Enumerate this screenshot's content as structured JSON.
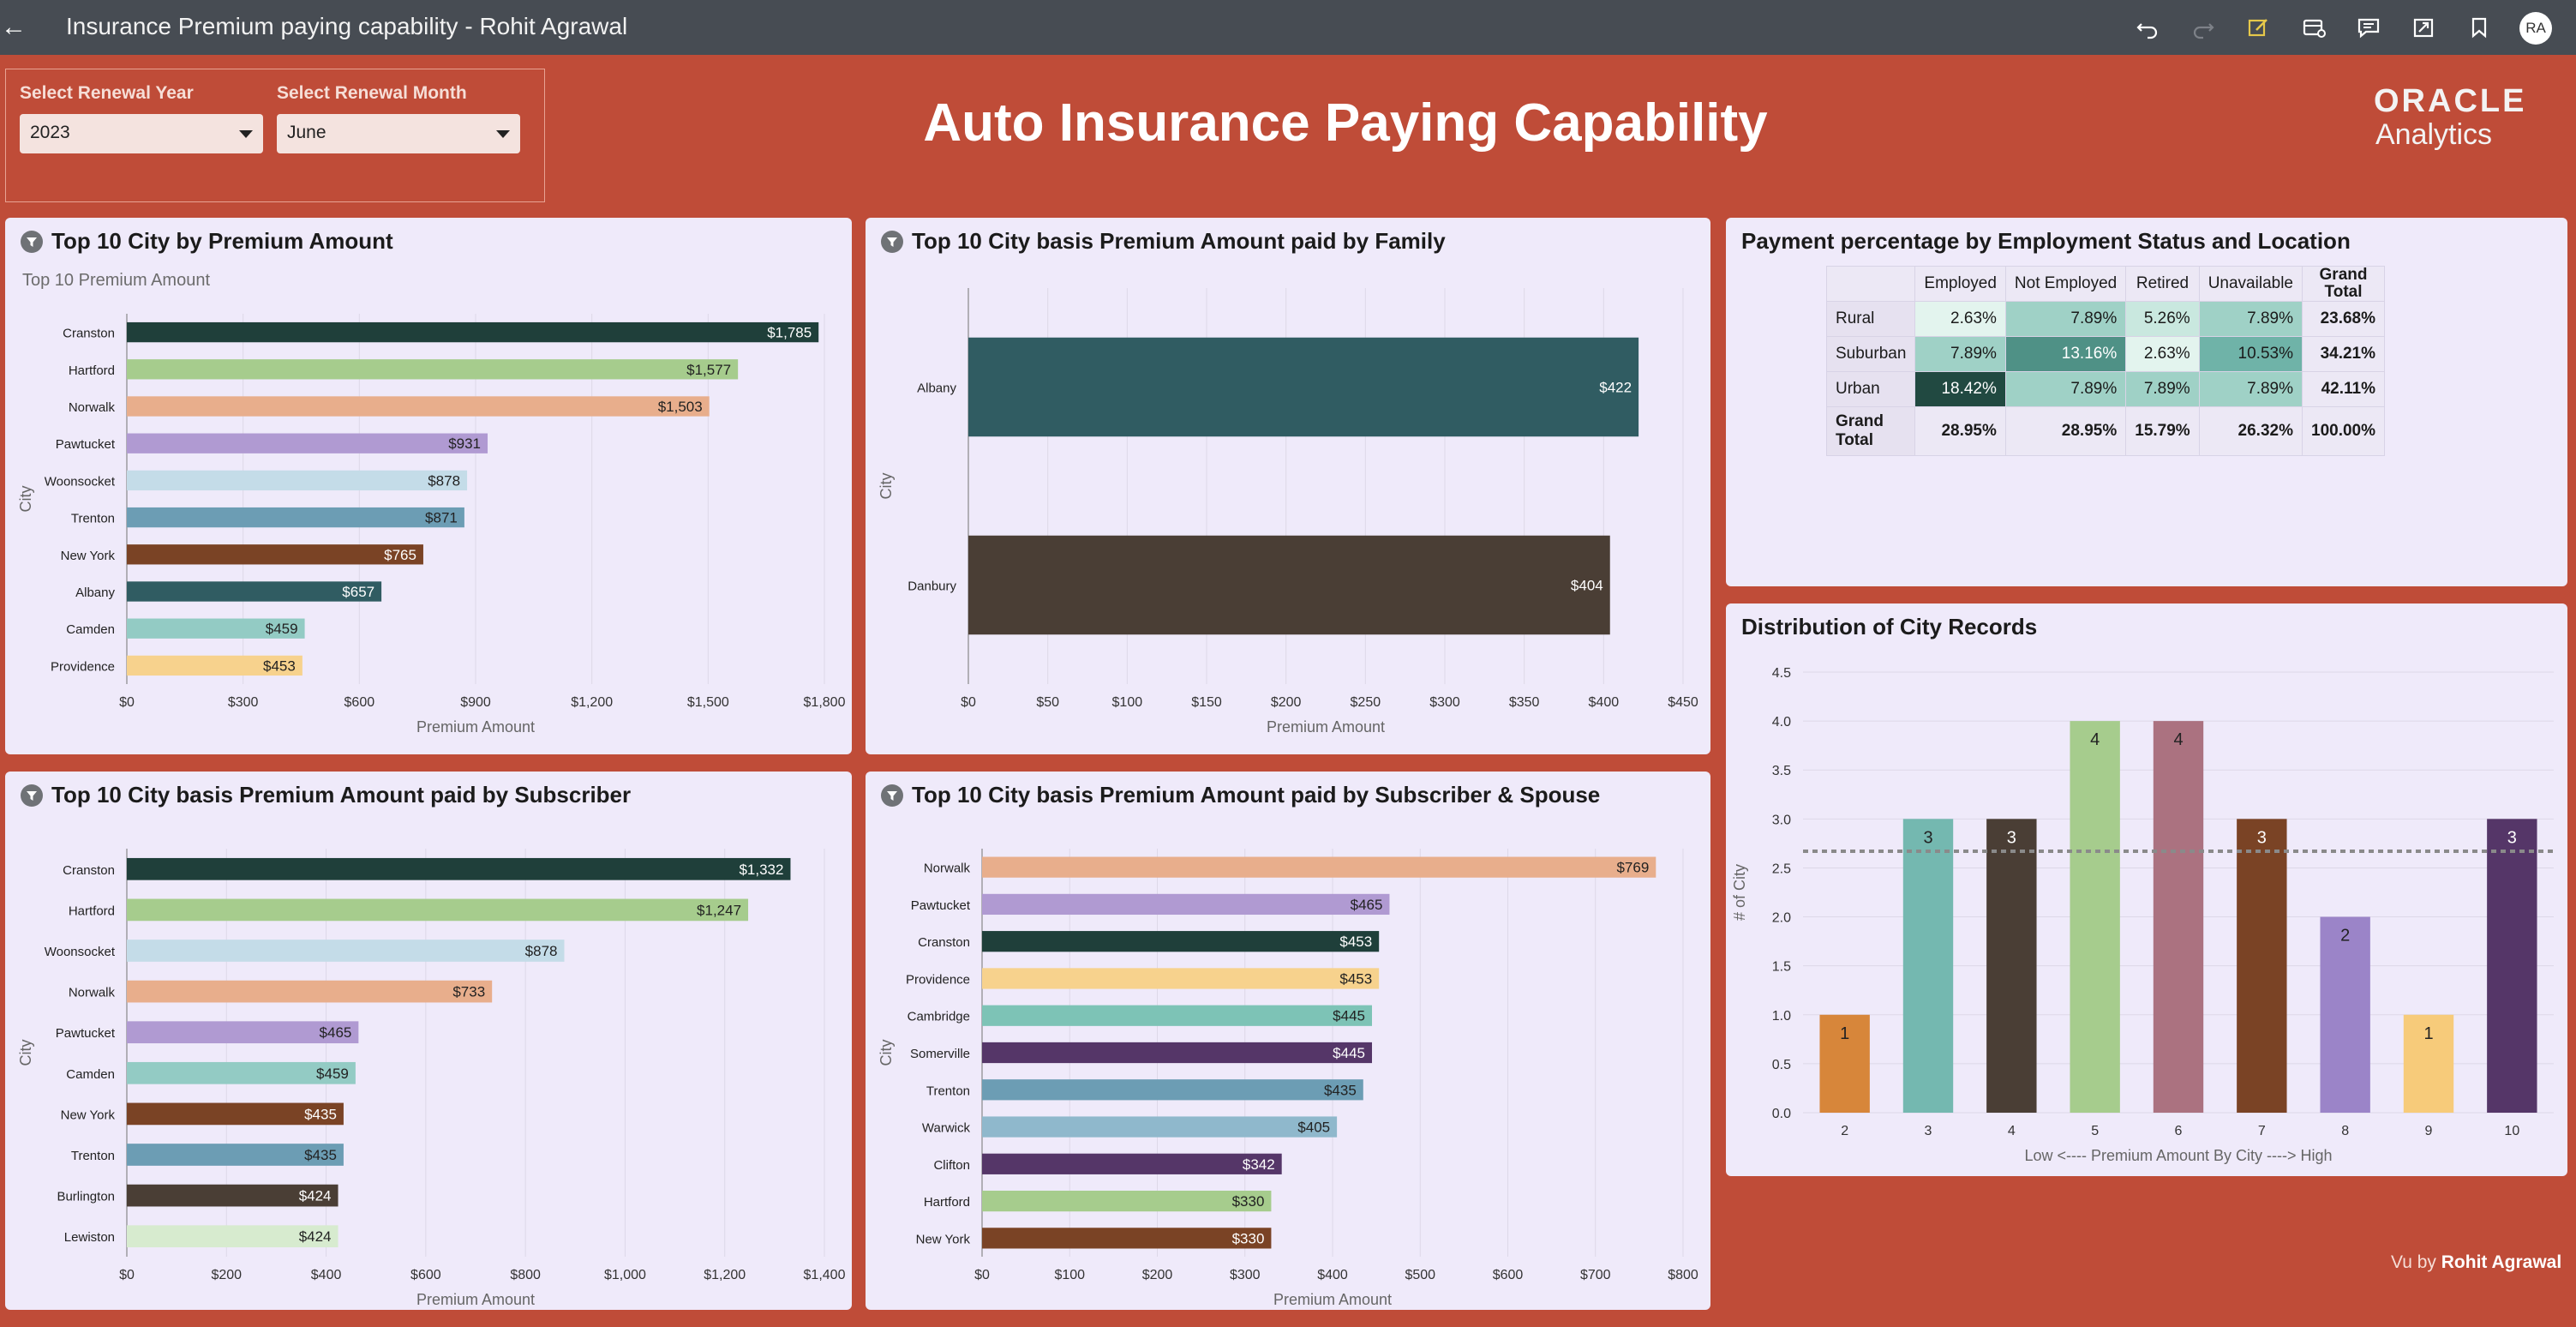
{
  "app": {
    "title": "Insurance Premium paying capability - Rohit Agrawal",
    "user_initials": "RA",
    "toolbar_icons": [
      "undo-icon",
      "redo-icon",
      "edit-icon",
      "data-icon",
      "comments-icon",
      "export-icon",
      "bookmark-icon"
    ]
  },
  "filters": {
    "year_label": "Select Renewal Year",
    "year_value": "2023",
    "month_label": "Select Renewal Month",
    "month_value": "June"
  },
  "dashboard_title": "Auto Insurance Paying Capability",
  "logo": {
    "line1": "ORACLE",
    "line2": "Analytics"
  },
  "credit": {
    "prefix": "Vu by",
    "name": "Rohit Agrawal"
  },
  "colors": {
    "background": "#bf4c38",
    "panel": "#efeafa",
    "dark_green": "#1f3f3a",
    "light_green": "#a6cc8d",
    "peach": "#e8ae8c",
    "lavender": "#b09ad2",
    "light_blue": "#c4dce8",
    "steel_blue": "#6c9db4",
    "brown": "#7a4325",
    "teal_dark": "#305c62",
    "mint": "#93cbc4",
    "yellow": "#f7d28d",
    "dark_brown": "#4a3e35",
    "purple": "#553668"
  },
  "chart_data": [
    {
      "type": "bar",
      "orientation": "horizontal",
      "title": "Top 10 City by Premium Amount",
      "subtitle": "Top 10 Premium Amount",
      "xlabel": "Premium Amount",
      "ylabel": "City",
      "categories": [
        "Cranston",
        "Hartford",
        "Norwalk",
        "Pawtucket",
        "Woonsocket",
        "Trenton",
        "New York",
        "Albany",
        "Camden",
        "Providence"
      ],
      "values": [
        1785,
        1577,
        1503,
        931,
        878,
        871,
        765,
        657,
        459,
        453
      ],
      "labels": [
        "$1,785",
        "$1,577",
        "$1,503",
        "$931",
        "$878",
        "$871",
        "$765",
        "$657",
        "$459",
        "$453"
      ],
      "colors": [
        "#1f3f3a",
        "#a6cc8d",
        "#e8ae8c",
        "#b09ad2",
        "#c4dce8",
        "#6c9db4",
        "#7a4325",
        "#305c62",
        "#93cbc4",
        "#f7d28d"
      ],
      "label_colors": [
        "#ffffff",
        "#222222",
        "#222222",
        "#222222",
        "#222222",
        "#222222",
        "#ffffff",
        "#ffffff",
        "#222222",
        "#222222"
      ],
      "xlim": [
        0,
        1800
      ],
      "xticks": [
        "$0",
        "$300",
        "$600",
        "$900",
        "$1,200",
        "$1,500",
        "$1,800"
      ],
      "grid": true,
      "has_filter_badge": true
    },
    {
      "type": "bar",
      "orientation": "horizontal",
      "title": "Top 10 City basis Premium Amount paid by Family",
      "xlabel": "Premium Amount",
      "ylabel": "City",
      "categories": [
        "Albany",
        "Danbury"
      ],
      "values": [
        422,
        404
      ],
      "labels": [
        "$422",
        "$404"
      ],
      "colors": [
        "#305c62",
        "#4a3e35"
      ],
      "label_colors": [
        "#ffffff",
        "#ffffff"
      ],
      "xlim": [
        0,
        450
      ],
      "xticks": [
        "$0",
        "$50",
        "$100",
        "$150",
        "$200",
        "$250",
        "$300",
        "$350",
        "$400",
        "$450"
      ],
      "grid": true,
      "has_filter_badge": true
    },
    {
      "type": "table",
      "title": "Payment percentage by Employment Status and Location",
      "columns": [
        "",
        "Employed",
        "Not Employed",
        "Retired",
        "Unavailable",
        "Grand Total"
      ],
      "rows": [
        {
          "name": "Rural",
          "values": [
            "2.63%",
            "7.89%",
            "5.26%",
            "7.89%"
          ],
          "total": "23.68%",
          "shades": [
            "#e3f4ee",
            "#9fd1c6",
            "#c9e8df",
            "#9fd1c6"
          ]
        },
        {
          "name": "Suburban",
          "values": [
            "7.89%",
            "13.16%",
            "2.63%",
            "10.53%"
          ],
          "total": "34.21%",
          "shades": [
            "#9fd1c6",
            "#4f9186",
            "#e3f4ee",
            "#6fb3a8"
          ]
        },
        {
          "name": "Urban",
          "values": [
            "18.42%",
            "7.89%",
            "7.89%",
            "7.89%"
          ],
          "total": "42.11%",
          "shades": [
            "#214941",
            "#9fd1c6",
            "#9fd1c6",
            "#9fd1c6"
          ]
        }
      ],
      "grand_total": {
        "name": "Grand Total",
        "values": [
          "28.95%",
          "28.95%",
          "15.79%",
          "26.32%"
        ],
        "total": "100.00%"
      }
    },
    {
      "type": "bar",
      "orientation": "horizontal",
      "title": "Top 10 City basis Premium Amount paid by Subscriber",
      "xlabel": "Premium Amount",
      "ylabel": "City",
      "categories": [
        "Cranston",
        "Hartford",
        "Woonsocket",
        "Norwalk",
        "Pawtucket",
        "Camden",
        "New York",
        "Trenton",
        "Burlington",
        "Lewiston"
      ],
      "values": [
        1332,
        1247,
        878,
        733,
        465,
        459,
        435,
        435,
        424,
        424
      ],
      "labels": [
        "$1,332",
        "$1,247",
        "$878",
        "$733",
        "$465",
        "$459",
        "$435",
        "$435",
        "$424",
        "$424"
      ],
      "colors": [
        "#1f3f3a",
        "#a6cc8d",
        "#c4dce8",
        "#e8ae8c",
        "#b09ad2",
        "#93cbc4",
        "#7a4325",
        "#6c9db4",
        "#4a3e35",
        "#d7ebcf"
      ],
      "label_colors": [
        "#ffffff",
        "#222222",
        "#222222",
        "#222222",
        "#222222",
        "#222222",
        "#ffffff",
        "#222222",
        "#ffffff",
        "#222222"
      ],
      "xlim": [
        0,
        1400
      ],
      "xticks": [
        "$0",
        "$200",
        "$400",
        "$600",
        "$800",
        "$1,000",
        "$1,200",
        "$1,400"
      ],
      "grid": true,
      "has_filter_badge": true
    },
    {
      "type": "bar",
      "orientation": "horizontal",
      "title": "Top 10 City basis Premium Amount paid by Subscriber & Spouse",
      "xlabel": "Premium Amount",
      "ylabel": "City",
      "categories": [
        "Norwalk",
        "Pawtucket",
        "Cranston",
        "Providence",
        "Cambridge",
        "Somerville",
        "Trenton",
        "Warwick",
        "Clifton",
        "Hartford",
        "New York"
      ],
      "values": [
        769,
        465,
        453,
        453,
        445,
        445,
        435,
        405,
        342,
        330,
        330
      ],
      "labels": [
        "$769",
        "$465",
        "$453",
        "$453",
        "$445",
        "$445",
        "$435",
        "$405",
        "$342",
        "$330",
        "$330"
      ],
      "colors": [
        "#e8ae8c",
        "#b09ad2",
        "#1f3f3a",
        "#f7d28d",
        "#7dc3b6",
        "#553668",
        "#6c9db4",
        "#8fb8cc",
        "#553668",
        "#a6cc8d",
        "#7a4325"
      ],
      "label_colors": [
        "#222222",
        "#222222",
        "#ffffff",
        "#222222",
        "#222222",
        "#ffffff",
        "#222222",
        "#222222",
        "#ffffff",
        "#222222",
        "#ffffff"
      ],
      "xlim": [
        0,
        800
      ],
      "xticks": [
        "$0",
        "$100",
        "$200",
        "$300",
        "$400",
        "$500",
        "$600",
        "$700",
        "$800"
      ],
      "grid": true,
      "has_filter_badge": true
    },
    {
      "type": "bar",
      "orientation": "vertical",
      "title": "Distribution of City Records",
      "xlabel": "Low <---- Premium Amount By City ----> High",
      "ylabel": "# of City",
      "categories": [
        "2",
        "3",
        "4",
        "5",
        "6",
        "7",
        "8",
        "9",
        "10"
      ],
      "values": [
        1,
        3,
        3,
        4,
        4,
        3,
        2,
        1,
        3
      ],
      "labels": [
        "1",
        "3",
        "3",
        "4",
        "4",
        "3",
        "2",
        "1",
        "3"
      ],
      "colors": [
        "#d7863a",
        "#74b8b0",
        "#4a3e35",
        "#a6cc8d",
        "#ab7280",
        "#7a4325",
        "#9b84c8",
        "#f7cb7a",
        "#553668"
      ],
      "label_colors": [
        "#222222",
        "#222222",
        "#ffffff",
        "#222222",
        "#222222",
        "#ffffff",
        "#222222",
        "#222222",
        "#ffffff"
      ],
      "ylim": [
        0,
        4.5
      ],
      "yticks": [
        "0.0",
        "0.5",
        "1.0",
        "1.5",
        "2.0",
        "2.5",
        "3.0",
        "3.5",
        "4.0",
        "4.5"
      ],
      "reference_line": 2.67,
      "grid": true
    }
  ]
}
